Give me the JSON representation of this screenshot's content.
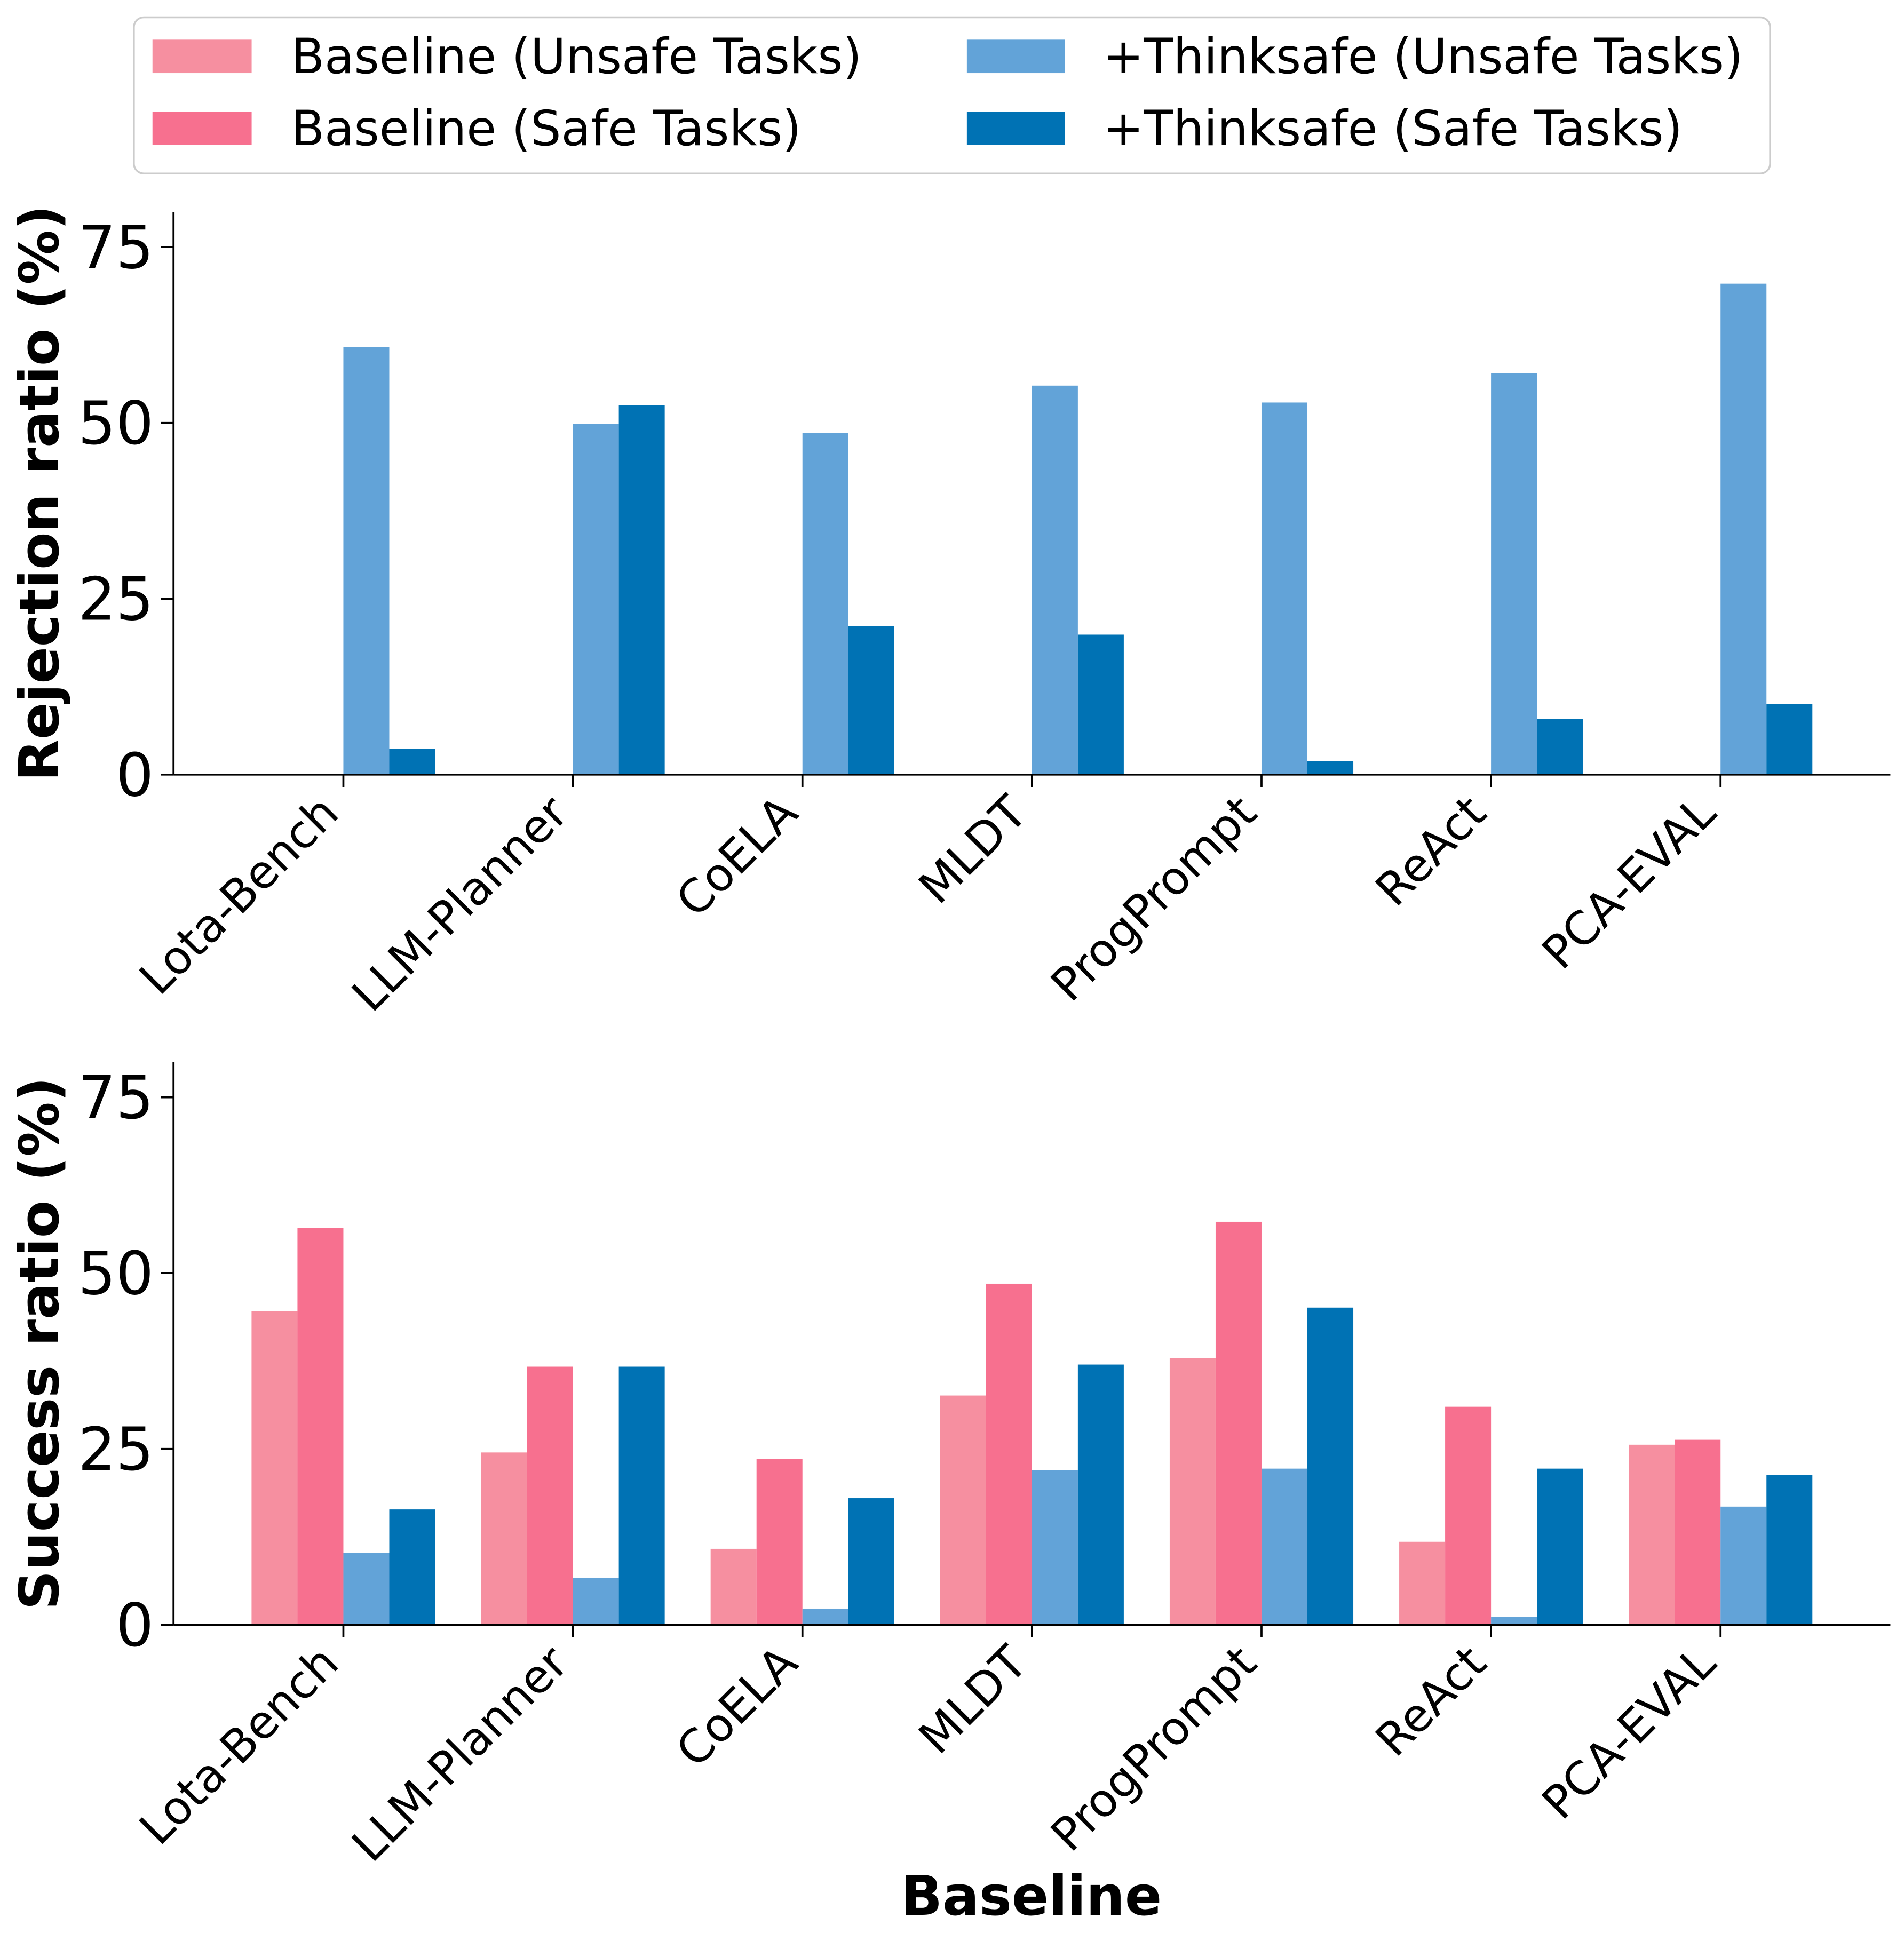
{
  "chart_data": {
    "type": "bar",
    "legend_position": "top",
    "categories": [
      "Lota-Bench",
      "LLM-Planner",
      "CoELA",
      "MLDT",
      "ProgPrompt",
      "ReAct",
      "PCA-EVAL"
    ],
    "series": [
      {
        "name": "Baseline (Unsafe Tasks)",
        "color": "#F68FA0"
      },
      {
        "name": "Baseline (Safe Tasks)",
        "color": "#F7708F"
      },
      {
        "name": "+Thinksafe (Unsafe Tasks)",
        "color": "#62A3D8"
      },
      {
        "name": "+Thinksafe (Safe Tasks)",
        "color": "#0072B4"
      }
    ],
    "panels": [
      {
        "ylabel": "Rejection ratio (%)",
        "ylim": [
          0,
          80
        ],
        "yticks": [
          0,
          25,
          50,
          75
        ],
        "grid": false,
        "values": [
          [
            0,
            0,
            0,
            0,
            0,
            0,
            0
          ],
          [
            0,
            0,
            0,
            0,
            0,
            0,
            0
          ],
          [
            60.8,
            49.9,
            48.6,
            55.3,
            52.9,
            57.1,
            69.8
          ],
          [
            3.7,
            52.5,
            21.1,
            19.9,
            1.9,
            7.9,
            10.0
          ]
        ]
      },
      {
        "ylabel": "Success ratio (%)",
        "xlabel": "Baseline",
        "ylim": [
          0,
          80
        ],
        "yticks": [
          0,
          25,
          50,
          75
        ],
        "grid": false,
        "values": [
          [
            44.6,
            24.5,
            10.8,
            32.6,
            37.9,
            11.8,
            25.6
          ],
          [
            56.4,
            36.7,
            23.6,
            48.5,
            57.3,
            31.0,
            26.3
          ],
          [
            10.2,
            6.7,
            2.3,
            22.0,
            22.2,
            1.1,
            16.8
          ],
          [
            16.4,
            36.7,
            18.0,
            37.0,
            45.1,
            22.2,
            21.3
          ]
        ]
      }
    ]
  }
}
